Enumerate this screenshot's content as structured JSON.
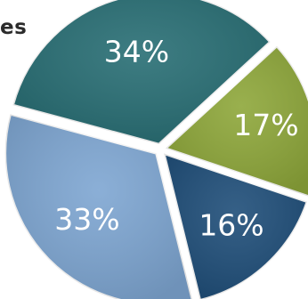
{
  "header_fragment": "es",
  "colors": {
    "slice_teal": "#286e74",
    "slice_green": "#8ea73a",
    "slice_navy": "#1f4e79",
    "slice_lightblue": "#7ea6d2",
    "separator": "#ffffff"
  },
  "chart_data": {
    "type": "pie",
    "title": "",
    "slices": [
      {
        "label": "34%",
        "value": 34,
        "color": "#286e74"
      },
      {
        "label": "17%",
        "value": 17,
        "color": "#8ea73a"
      },
      {
        "label": "16%",
        "value": 16,
        "color": "#1f4e79"
      },
      {
        "label": "33%",
        "value": 33,
        "color": "#7ea6d2"
      }
    ]
  }
}
